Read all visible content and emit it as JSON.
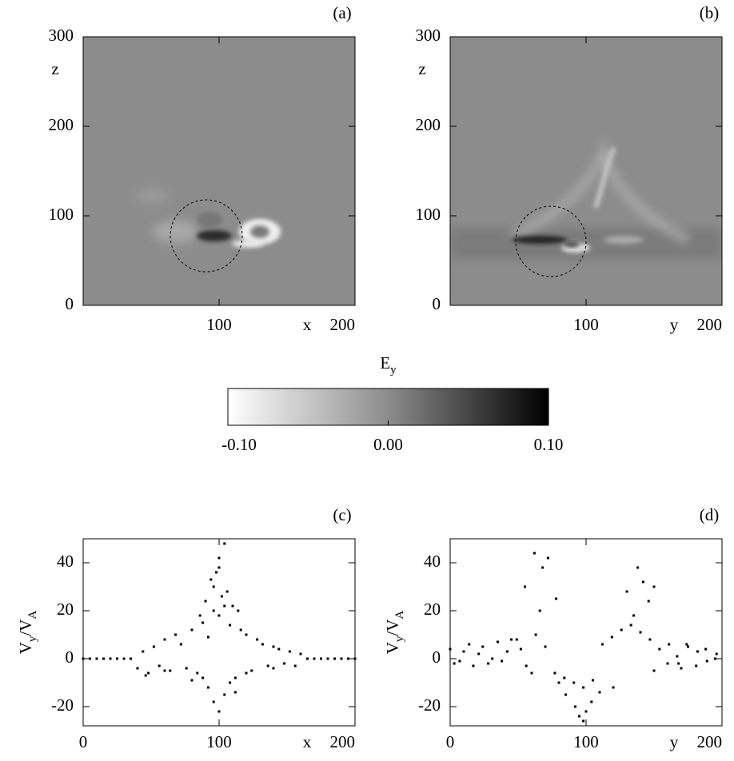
{
  "chart_data": [
    {
      "type": "heatmap",
      "panel": "(a)",
      "xlabel": "x",
      "ylabel": "z",
      "xlim": [
        0,
        200
      ],
      "ylim": [
        0,
        300
      ],
      "xticks": [
        100,
        200
      ],
      "yticks": [
        0,
        100,
        200,
        300
      ]
    },
    {
      "type": "heatmap",
      "panel": "(b)",
      "xlabel": "y",
      "ylabel": "z",
      "xlim": [
        0,
        200
      ],
      "ylim": [
        0,
        300
      ],
      "xticks": [
        100,
        200
      ],
      "yticks": [
        0,
        100,
        200,
        300
      ]
    },
    {
      "type": "colorbar",
      "title": [
        "E",
        "y"
      ],
      "clim": [
        -0.1,
        0.1
      ],
      "ticks": [
        {
          "value": -0.1,
          "label": "-0.10"
        },
        {
          "value": 0,
          "label": "0.00"
        },
        {
          "value": 0.1,
          "label": "0.10"
        }
      ]
    },
    {
      "type": "scatter",
      "panel": "(c)",
      "xlabel": "x",
      "ylabel": [
        "V",
        "y",
        "/V",
        "A"
      ],
      "xlim": [
        0,
        200
      ],
      "ylim": [
        -28,
        50
      ],
      "xticks": [
        0,
        100,
        200
      ],
      "yticks": [
        -20,
        0,
        20,
        40
      ],
      "color": "#000000",
      "x": [
        0,
        5,
        10,
        15,
        20,
        25,
        30,
        35,
        165,
        170,
        175,
        180,
        185,
        190,
        195,
        200,
        40,
        44,
        48,
        52,
        56,
        60,
        64,
        68,
        72,
        76,
        80,
        84,
        88,
        92,
        96,
        100,
        104,
        108,
        112,
        116,
        120,
        124,
        128,
        132,
        136,
        140,
        144,
        148,
        152,
        156,
        160,
        96,
        100,
        104,
        98,
        102,
        94,
        106,
        90,
        110,
        86,
        114,
        100,
        92,
        96,
        100,
        104,
        108,
        88,
        112,
        80,
        120,
        60,
        140,
        46
      ],
      "y": [
        0,
        0,
        0,
        0,
        0,
        0,
        0,
        0,
        0,
        0,
        0,
        0,
        0,
        0,
        0,
        0,
        -4,
        3,
        -6,
        5,
        -3,
        8,
        -5,
        10,
        6,
        -4,
        12,
        -6,
        15,
        9,
        20,
        18,
        22,
        14,
        -8,
        12,
        10,
        -5,
        8,
        6,
        -3,
        5,
        4,
        -2,
        3,
        -3,
        2,
        30,
        42,
        48,
        36,
        26,
        33,
        28,
        24,
        22,
        18,
        20,
        38,
        -12,
        -18,
        -22,
        -15,
        -10,
        -8,
        -14,
        -9,
        -6,
        -5,
        -4,
        -7
      ]
    },
    {
      "type": "scatter",
      "panel": "(d)",
      "xlabel": "y",
      "ylabel": [
        "V",
        "y",
        "/V",
        "A"
      ],
      "xlim": [
        0,
        200
      ],
      "ylim": [
        -28,
        50
      ],
      "xticks": [
        0,
        100,
        200
      ],
      "yticks": [
        -20,
        0,
        20,
        40
      ],
      "color": "#000000",
      "x": [
        0,
        7,
        14,
        21,
        28,
        35,
        42,
        49,
        56,
        63,
        70,
        77,
        84,
        91,
        98,
        105,
        112,
        119,
        126,
        133,
        140,
        147,
        154,
        161,
        168,
        175,
        182,
        189,
        196,
        55,
        62,
        68,
        72,
        78,
        66,
        130,
        138,
        142,
        146,
        150,
        135,
        85,
        92,
        98,
        100,
        104,
        110,
        95,
        80,
        120,
        60,
        150,
        170,
        3,
        10,
        17,
        24,
        31,
        38,
        45,
        52,
        160,
        167,
        174,
        181,
        188,
        195
      ],
      "y": [
        4,
        -1,
        6,
        2,
        -2,
        7,
        3,
        8,
        -3,
        10,
        5,
        -6,
        -8,
        -10,
        -12,
        -9,
        6,
        9,
        12,
        14,
        11,
        8,
        4,
        6,
        -2,
        5,
        3,
        -1,
        2,
        30,
        44,
        38,
        42,
        25,
        20,
        28,
        38,
        32,
        24,
        30,
        18,
        -15,
        -20,
        -26,
        -22,
        -18,
        -14,
        -24,
        -10,
        -12,
        -6,
        -5,
        -4,
        -2,
        3,
        -3,
        5,
        0,
        -1,
        8,
        4,
        -2,
        1,
        6,
        -3,
        4,
        0
      ]
    }
  ]
}
